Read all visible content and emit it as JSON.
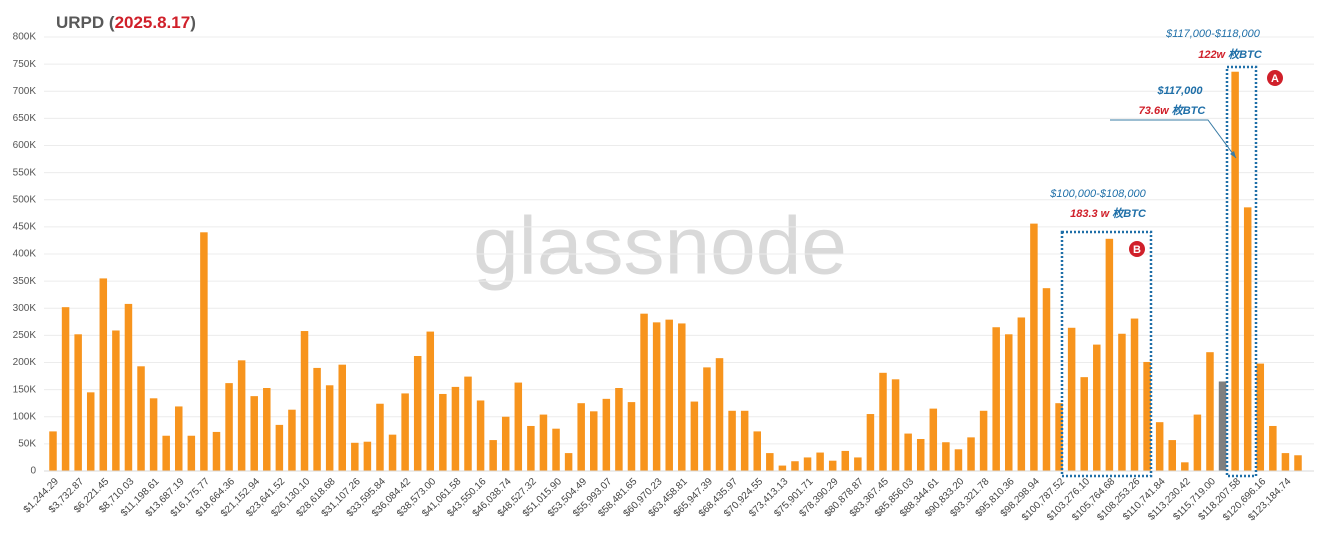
{
  "chart_data": {
    "type": "bar",
    "title_parts": [
      "URPD (",
      "2025.8.17",
      ")"
    ],
    "watermark": "glassnode",
    "categories": [
      "$1,244.29",
      null,
      "$3,732.87",
      null,
      "$6,221.45",
      null,
      "$8,710.03",
      null,
      "$11,198.61",
      null,
      "$13,687.19",
      null,
      "$16,175.77",
      null,
      "$18,664.36",
      null,
      "$21,152.94",
      null,
      "$23,641.52",
      null,
      "$26,130.10",
      null,
      "$28,618.68",
      null,
      "$31,107.26",
      null,
      "$33,595.84",
      null,
      "$36,084.42",
      null,
      "$38,573.00",
      null,
      "$41,061.58",
      null,
      "$43,550.16",
      null,
      "$46,038.74",
      null,
      "$48,527.32",
      null,
      "$51,015.90",
      null,
      "$53,504.49",
      null,
      "$55,993.07",
      null,
      "$58,481.65",
      null,
      "$60,970.23",
      null,
      "$63,458.81",
      null,
      "$65,947.39",
      null,
      "$68,435.97",
      null,
      "$70,924.55",
      null,
      "$73,413.13",
      null,
      "$75,901.71",
      null,
      "$78,390.29",
      null,
      "$80,878.87",
      null,
      "$83,367.45",
      null,
      "$85,856.03",
      null,
      "$88,344.61",
      null,
      "$90,833.20",
      null,
      "$93,321.78",
      null,
      "$95,810.36",
      null,
      "$98,298.94",
      null,
      "$100,787.52",
      null,
      "$103,276.10",
      null,
      "$105,764.68",
      null,
      "$108,253.26",
      null,
      "$110,741.84",
      null,
      "$113,230.42",
      null,
      "$115,719.00",
      null,
      "$118,207.58",
      null,
      "$120,696.16",
      null,
      "$123,184.74",
      null
    ],
    "values": [
      73000,
      302000,
      252000,
      145000,
      355000,
      259000,
      308000,
      193000,
      134000,
      65000,
      119000,
      65000,
      440000,
      72000,
      162000,
      204000,
      138000,
      153000,
      85000,
      113000,
      258000,
      190000,
      158000,
      196000,
      52000,
      54000,
      124000,
      67000,
      143000,
      212000,
      257000,
      142000,
      155000,
      174000,
      130000,
      57000,
      100000,
      163000,
      83000,
      104000,
      78000,
      33000,
      125000,
      110000,
      133000,
      153000,
      127000,
      290000,
      274000,
      279000,
      272000,
      128000,
      191000,
      208000,
      111000,
      111000,
      73000,
      33000,
      10000,
      18000,
      25000,
      34000,
      19000,
      37000,
      25000,
      105000,
      181000,
      169000,
      69000,
      59000,
      115000,
      53000,
      40000,
      62000,
      111000,
      265000,
      252000,
      283000,
      456000,
      337000,
      125000,
      264000,
      173000,
      233000,
      428000,
      253000,
      281000,
      201000,
      90000,
      57000,
      16000,
      104000,
      219000,
      165000,
      736000,
      486000,
      198000,
      83000,
      33000,
      29000
    ],
    "colors": [
      "#f7941d",
      "#f7941d",
      "#f7941d",
      "#f7941d",
      "#f7941d",
      "#f7941d",
      "#f7941d",
      "#f7941d",
      "#f7941d",
      "#f7941d",
      "#f7941d",
      "#f7941d",
      "#f7941d",
      "#f7941d",
      "#f7941d",
      "#f7941d",
      "#f7941d",
      "#f7941d",
      "#f7941d",
      "#f7941d",
      "#f7941d",
      "#f7941d",
      "#f7941d",
      "#f7941d",
      "#f7941d",
      "#f7941d",
      "#f7941d",
      "#f7941d",
      "#f7941d",
      "#f7941d",
      "#f7941d",
      "#f7941d",
      "#f7941d",
      "#f7941d",
      "#f7941d",
      "#f7941d",
      "#f7941d",
      "#f7941d",
      "#f7941d",
      "#f7941d",
      "#f7941d",
      "#f7941d",
      "#f7941d",
      "#f7941d",
      "#f7941d",
      "#f7941d",
      "#f7941d",
      "#f7941d",
      "#f7941d",
      "#f7941d",
      "#f7941d",
      "#f7941d",
      "#f7941d",
      "#f7941d",
      "#f7941d",
      "#f7941d",
      "#f7941d",
      "#f7941d",
      "#f7941d",
      "#f7941d",
      "#f7941d",
      "#f7941d",
      "#f7941d",
      "#f7941d",
      "#f7941d",
      "#f7941d",
      "#f7941d",
      "#f7941d",
      "#f7941d",
      "#f7941d",
      "#f7941d",
      "#f7941d",
      "#f7941d",
      "#f7941d",
      "#f7941d",
      "#f7941d",
      "#f7941d",
      "#f7941d",
      "#f7941d",
      "#f7941d",
      "#f7941d",
      "#f7941d",
      "#f7941d",
      "#f7941d",
      "#f7941d",
      "#f7941d",
      "#f7941d",
      "#f7941d",
      "#f7941d",
      "#f7941d",
      "#f7941d",
      "#f7941d",
      "#f7941d",
      "#7f7f7f",
      "#f7941d",
      "#f7941d",
      "#f7941d",
      "#f7941d",
      "#f7941d",
      "#f7941d"
    ],
    "ylim": [
      0,
      800000
    ],
    "yticks": [
      0,
      {
        "value": 50000,
        "label": "50K"
      },
      {
        "value": 100000,
        "label": "100K"
      },
      {
        "value": 150000,
        "label": "150K"
      },
      {
        "value": 200000,
        "label": "200K"
      },
      {
        "value": 250000,
        "label": "250K"
      },
      {
        "value": 300000,
        "label": "300K"
      },
      {
        "value": 350000,
        "label": "350K"
      },
      {
        "value": 400000,
        "label": "400K"
      },
      {
        "value": 450000,
        "label": "450K"
      },
      {
        "value": 500000,
        "label": "500K"
      },
      {
        "value": 550000,
        "label": "550K"
      },
      {
        "value": 600000,
        "label": "600K"
      },
      {
        "value": 650000,
        "label": "650K"
      },
      {
        "value": 700000,
        "label": "700K"
      },
      {
        "value": 750000,
        "label": "750K"
      },
      {
        "value": 800000,
        "label": "800K"
      }
    ],
    "grid": true,
    "annotations": [
      {
        "marker": "A",
        "range": "$117,000-$118,000",
        "amount_parts": [
          "122w ",
          "枚BTC"
        ]
      },
      {
        "price": "$117,000",
        "amount_parts": [
          "73.6w ",
          "枚BTC"
        ]
      },
      {
        "marker": "B",
        "range": "$100,000-$108,000",
        "amount_parts": [
          "183.3 w ",
          "枚BTC"
        ]
      }
    ]
  }
}
